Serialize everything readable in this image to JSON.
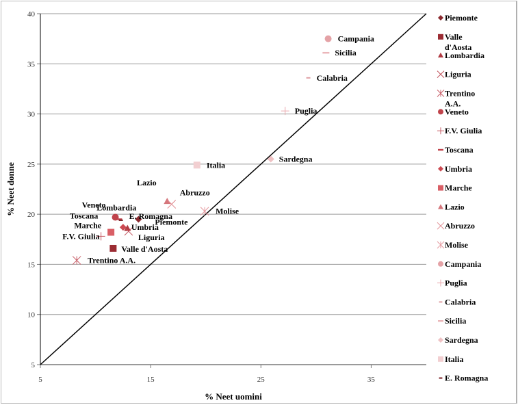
{
  "chart_data": {
    "type": "scatter",
    "title": "",
    "xlabel": "% Neet uomini",
    "ylabel": "% Neet donne",
    "xlim": [
      5,
      40
    ],
    "ylim": [
      5,
      40
    ],
    "xticks": [
      5,
      15,
      25,
      35
    ],
    "yticks": [
      5,
      10,
      15,
      20,
      25,
      30,
      35,
      40
    ],
    "grid": "horizontal",
    "reference_line": {
      "name": "y = x",
      "from": [
        5,
        5
      ],
      "to": [
        40,
        40
      ]
    },
    "legend_position": "right",
    "series": [
      {
        "name": "Piemonte",
        "x": 13.9,
        "y": 19.5,
        "marker": "diamond",
        "color": "#8b2a2f",
        "label": "Piemonte"
      },
      {
        "name": "Valle d'Aosta",
        "x": 11.6,
        "y": 16.6,
        "marker": "square",
        "color": "#9b2c33",
        "label": "Valle d'Aosta"
      },
      {
        "name": "Lombardia",
        "x": 12.9,
        "y": 18.6,
        "marker": "triangle",
        "color": "#b13a42",
        "label": "Lombardia"
      },
      {
        "name": "Liguria",
        "x": 13.0,
        "y": 18.3,
        "marker": "x",
        "color": "#c0505a",
        "label": "Liguria"
      },
      {
        "name": "Trentino A.A.",
        "x": 8.3,
        "y": 15.4,
        "marker": "star",
        "color": "#c65a64",
        "label": "Trentino A.A."
      },
      {
        "name": "Veneto",
        "x": 11.8,
        "y": 19.7,
        "marker": "circle",
        "color": "#c0434b",
        "label": "Veneto"
      },
      {
        "name": "F.V. Giulia",
        "x": 10.5,
        "y": 17.8,
        "marker": "plus",
        "color": "#c65a64",
        "label": "F.V. Giulia"
      },
      {
        "name": "Toscana",
        "x": 12.1,
        "y": 19.5,
        "marker": "dash",
        "color": "#c0434b",
        "label": "Toscana"
      },
      {
        "name": "Umbria",
        "x": 12.5,
        "y": 18.7,
        "marker": "diamond",
        "color": "#cc4a52",
        "label": "Umbria"
      },
      {
        "name": "Marche",
        "x": 11.4,
        "y": 18.2,
        "marker": "square",
        "color": "#d95f66",
        "label": "Marche"
      },
      {
        "name": "Lazio",
        "x": 16.5,
        "y": 21.3,
        "marker": "triangle",
        "color": "#d5767c",
        "label": "Lazio"
      },
      {
        "name": "Abruzzo",
        "x": 16.9,
        "y": 21.0,
        "marker": "x",
        "color": "#e08a8f",
        "label": "Abruzzo"
      },
      {
        "name": "Molise",
        "x": 19.9,
        "y": 20.3,
        "marker": "star",
        "color": "#e59aa0",
        "label": "Molise"
      },
      {
        "name": "Campania",
        "x": 31.1,
        "y": 37.5,
        "marker": "circle",
        "color": "#e4a2a6",
        "label": "Campania"
      },
      {
        "name": "Puglia",
        "x": 27.2,
        "y": 30.3,
        "marker": "plus",
        "color": "#e8a8ac",
        "label": "Puglia"
      },
      {
        "name": "Calabria",
        "x": 29.3,
        "y": 33.6,
        "marker": "dash-small",
        "color": "#e0a0a4",
        "label": "Calabria"
      },
      {
        "name": "Sicilia",
        "x": 30.9,
        "y": 36.1,
        "marker": "dash",
        "color": "#ebb6b9",
        "label": "Sicilia"
      },
      {
        "name": "Sardegna",
        "x": 25.9,
        "y": 25.5,
        "marker": "diamond",
        "color": "#efc2c4",
        "label": "Sardegna"
      },
      {
        "name": "Italia",
        "x": 19.2,
        "y": 24.9,
        "marker": "square",
        "color": "#f2cfd1",
        "label": "Italia"
      },
      {
        "name": "E. Romagna",
        "x": 12.3,
        "y": 19.4,
        "marker": "dash-small",
        "color": "#7a1f24",
        "label": "E. Romagna"
      }
    ]
  }
}
